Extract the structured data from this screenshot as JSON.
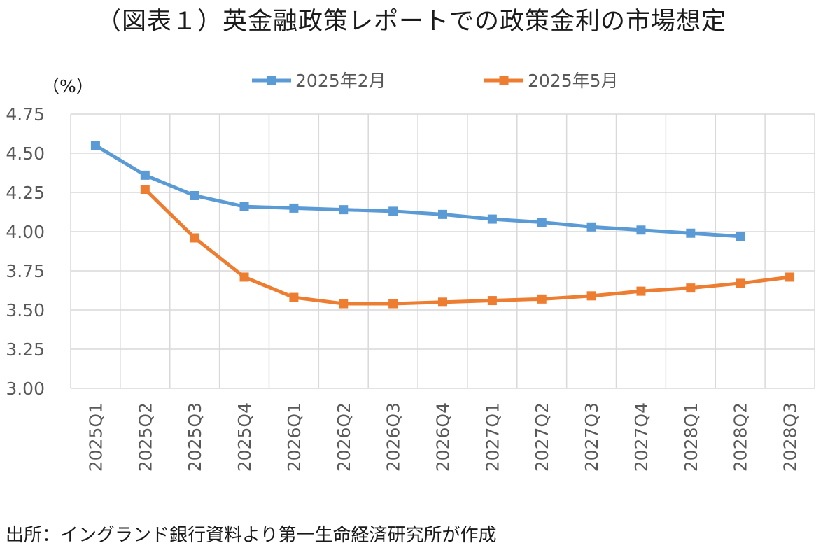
{
  "title": "（図表１）英金融政策レポートでの政策金利の市場想定",
  "source": "出所：イングランド銀行資料より第一生命経済研究所が作成",
  "chart_data": {
    "type": "line",
    "unit_label": "（%）",
    "ylim": [
      3.0,
      4.75
    ],
    "y_ticks": [
      "3.00",
      "3.25",
      "3.50",
      "3.75",
      "4.00",
      "4.25",
      "4.50",
      "4.75"
    ],
    "categories": [
      "2025Q1",
      "2025Q2",
      "2025Q3",
      "2025Q4",
      "2026Q1",
      "2026Q2",
      "2026Q3",
      "2026Q4",
      "2027Q1",
      "2027Q2",
      "2027Q3",
      "2027Q4",
      "2028Q1",
      "2028Q2",
      "2028Q3"
    ],
    "grid": true,
    "legend_position": "top",
    "series": [
      {
        "name": "2025年2月",
        "color": "#5B9BD5",
        "values": [
          4.55,
          4.36,
          4.23,
          4.16,
          4.15,
          4.14,
          4.13,
          4.11,
          4.08,
          4.06,
          4.03,
          4.01,
          3.99,
          3.97,
          null
        ]
      },
      {
        "name": "2025年5月",
        "color": "#ED7D31",
        "values": [
          null,
          4.27,
          3.96,
          3.71,
          3.58,
          3.54,
          3.54,
          3.55,
          3.56,
          3.57,
          3.59,
          3.62,
          3.64,
          3.67,
          3.71
        ]
      }
    ]
  }
}
